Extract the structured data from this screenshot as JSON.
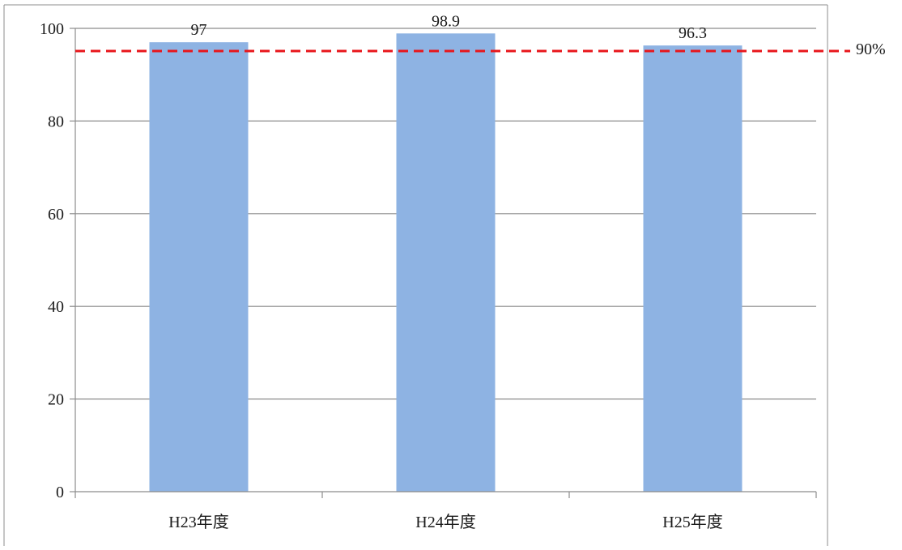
{
  "chart_data": {
    "type": "bar",
    "categories": [
      "H23年度",
      "H24年度",
      "H25年度"
    ],
    "values": [
      97,
      98.9,
      96.3
    ],
    "data_labels": [
      "97",
      "98.9",
      "96.3"
    ],
    "ylim": [
      0,
      100
    ],
    "yticks": [
      0,
      20,
      40,
      60,
      80,
      100
    ],
    "grid": true,
    "bar_color": "#8eb3e3",
    "reference_line": {
      "label": "90%",
      "color": "#e8161b",
      "style": "dashed"
    }
  }
}
